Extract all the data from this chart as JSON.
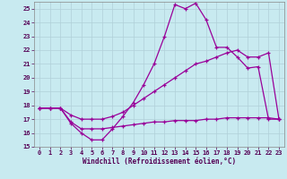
{
  "xlabel": "Windchill (Refroidissement éolien,°C)",
  "bg_color": "#c8eaf0",
  "line_color": "#990099",
  "grid_color": "#b0d0d8",
  "xlim": [
    -0.5,
    23.5
  ],
  "ylim": [
    15,
    25.5
  ],
  "yticks": [
    15,
    16,
    17,
    18,
    19,
    20,
    21,
    22,
    23,
    24,
    25
  ],
  "xticks": [
    0,
    1,
    2,
    3,
    4,
    5,
    6,
    7,
    8,
    9,
    10,
    11,
    12,
    13,
    14,
    15,
    16,
    17,
    18,
    19,
    20,
    21,
    22,
    23
  ],
  "line1_x": [
    0,
    1,
    2,
    3,
    4,
    5,
    6,
    7,
    8,
    9,
    10,
    11,
    12,
    13,
    14,
    15,
    16,
    17,
    18,
    19,
    20,
    21,
    22,
    23
  ],
  "line1_y": [
    17.8,
    17.8,
    17.8,
    16.7,
    16.0,
    15.5,
    15.5,
    16.3,
    17.2,
    18.2,
    19.5,
    21.0,
    23.0,
    25.3,
    25.0,
    25.4,
    24.2,
    22.2,
    22.2,
    21.5,
    20.7,
    20.8,
    17.0,
    17.0
  ],
  "line2_x": [
    0,
    1,
    2,
    3,
    4,
    5,
    6,
    7,
    8,
    9,
    10,
    11,
    12,
    13,
    14,
    15,
    16,
    17,
    18,
    19,
    20,
    21,
    22,
    23
  ],
  "line2_y": [
    17.8,
    17.8,
    17.8,
    17.3,
    17.0,
    17.0,
    17.0,
    17.2,
    17.5,
    18.0,
    18.5,
    19.0,
    19.5,
    20.0,
    20.5,
    21.0,
    21.2,
    21.5,
    21.8,
    22.0,
    21.5,
    21.5,
    21.8,
    17.0
  ],
  "line3_x": [
    0,
    1,
    2,
    3,
    4,
    5,
    6,
    7,
    8,
    9,
    10,
    11,
    12,
    13,
    14,
    15,
    16,
    17,
    18,
    19,
    20,
    21,
    22,
    23
  ],
  "line3_y": [
    17.8,
    17.8,
    17.8,
    16.8,
    16.3,
    16.3,
    16.3,
    16.4,
    16.5,
    16.6,
    16.7,
    16.8,
    16.8,
    16.9,
    16.9,
    16.9,
    17.0,
    17.0,
    17.1,
    17.1,
    17.1,
    17.1,
    17.1,
    17.0
  ]
}
